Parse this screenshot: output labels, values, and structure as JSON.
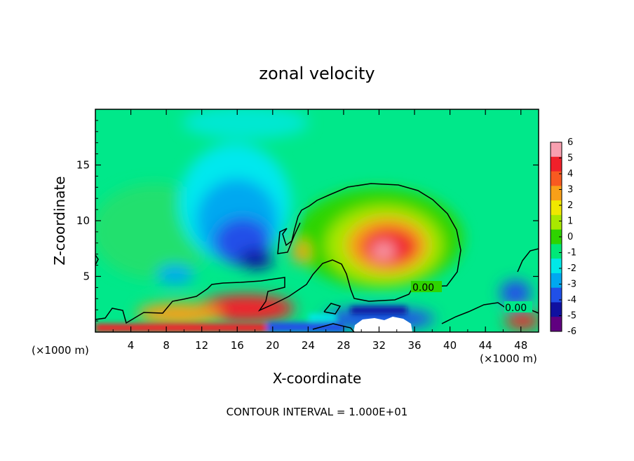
{
  "chart_data": {
    "type": "heatmap",
    "title": "zonal velocity",
    "xlabel": "X-coordinate",
    "ylabel": "Z-coordinate",
    "x_unit_label_left": "(×1000 m)",
    "x_unit_label_right": "(×1000 m)",
    "xlim": [
      0,
      50
    ],
    "ylim": [
      0,
      20
    ],
    "x_ticks": [
      4,
      8,
      12,
      16,
      20,
      24,
      28,
      32,
      36,
      40,
      44,
      48
    ],
    "y_ticks": [
      5,
      10,
      15
    ],
    "colorbar": {
      "range": [
        -6,
        6
      ],
      "ticks": [
        6,
        5,
        4,
        3,
        2,
        1,
        0,
        -1,
        -2,
        -3,
        -4,
        -5,
        -6
      ],
      "colors": [
        "#f8a0b0",
        "#f0202a",
        "#f85a20",
        "#f8a018",
        "#f0e800",
        "#a8e800",
        "#2ed400",
        "#00e878",
        "#00e8e8",
        "#00a8f0",
        "#2050e8",
        "#1010a0",
        "#600080"
      ]
    },
    "contour_labels": [
      "0.00",
      "0.00"
    ],
    "footer": "CONTOUR INTERVAL = 1.000E+01"
  }
}
